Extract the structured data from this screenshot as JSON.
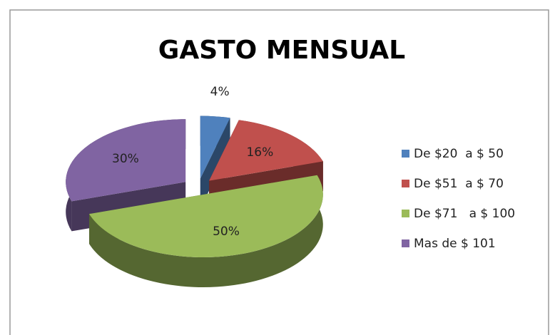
{
  "chart_data": {
    "type": "pie",
    "title": "GASTO MENSUAL",
    "categories": [
      "De $20  a $ 50",
      "De $51  a $ 70",
      "De $71   a $ 100",
      "Mas de $ 101"
    ],
    "values": [
      4,
      16,
      50,
      30
    ],
    "value_labels": [
      "4%",
      "16%",
      "50%",
      "30%"
    ],
    "colors": [
      "#4f81bd",
      "#c0504d",
      "#9bbb59",
      "#8064a2"
    ],
    "legend": "right"
  }
}
